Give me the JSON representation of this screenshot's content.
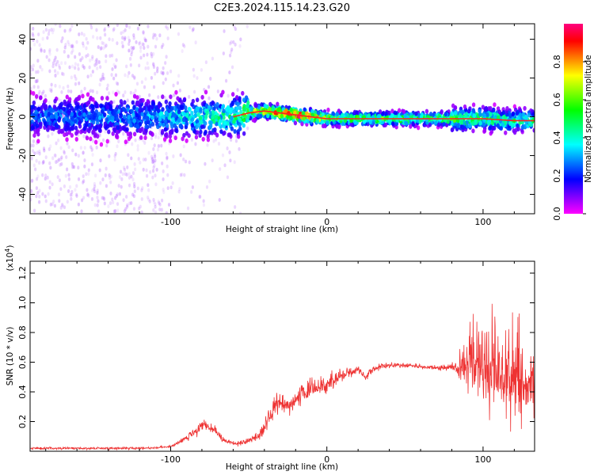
{
  "figure": {
    "title": "C2E3.2024.115.14.23.G20"
  },
  "chart_data": [
    {
      "type": "heatmap",
      "name": "spectrogram",
      "xlabel": "Height of straight line (km)",
      "ylabel": "Frequency (Hz)",
      "xlim": [
        -190,
        133
      ],
      "ylim": [
        -50,
        48
      ],
      "x_ticks": [
        -100,
        0,
        100
      ],
      "x_tick_labels": [
        "-100",
        "0",
        "100"
      ],
      "y_ticks": [
        -40,
        -20,
        0,
        20,
        40
      ],
      "y_tick_labels": [
        "-40",
        "-20",
        "0",
        "20",
        "40"
      ],
      "colorbar": {
        "label": "Normalized spectral amplitude",
        "range": [
          0,
          1
        ],
        "ticks": [
          0.0,
          0.2,
          0.4,
          0.6,
          0.8
        ],
        "tick_labels": [
          "0.0",
          "0.2",
          "0.4",
          "0.6",
          "0.8"
        ],
        "colormap": [
          "#ff00ff",
          "#7f00ff",
          "#0000ff",
          "#0080ff",
          "#00ffff",
          "#00ff80",
          "#00ff00",
          "#80ff00",
          "#ffff00",
          "#ff8000",
          "#ff0000",
          "#ff007f"
        ]
      },
      "ridge": {
        "x": [
          -190,
          -120,
          -100,
          -80,
          -60,
          -50,
          -40,
          -30,
          -20,
          -10,
          0,
          20,
          40,
          60,
          80,
          100,
          120,
          133
        ],
        "freq": [
          0,
          0,
          0,
          0,
          0,
          2,
          3,
          2,
          1,
          0,
          -1,
          -1,
          -1,
          -1,
          -1,
          -1,
          -2,
          -2
        ],
        "amplitude": [
          0.25,
          0.3,
          0.35,
          0.4,
          0.45,
          0.6,
          0.75,
          0.85,
          0.95,
          0.9,
          0.6,
          0.55,
          0.55,
          0.55,
          0.55,
          0.5,
          0.45,
          0.45
        ]
      }
    },
    {
      "type": "line",
      "name": "snr",
      "xlabel": "Height of straight line (km)",
      "ylabel": "SNR (10 * v/v)",
      "y_scale_note": "(x10^4)",
      "xlim": [
        -190,
        133
      ],
      "ylim": [
        0,
        1.28
      ],
      "x_ticks": [
        -100,
        0,
        100
      ],
      "x_tick_labels": [
        "-100",
        "0",
        "100"
      ],
      "y_ticks": [
        0.2,
        0.4,
        0.6,
        0.8,
        1.0,
        1.2
      ],
      "y_tick_labels": [
        "0.2",
        "0.4",
        "0.6",
        "0.8",
        "1.0",
        "1.2"
      ],
      "color": "#ee3333",
      "envelope": {
        "x": [
          -190,
          -120,
          -100,
          -92,
          -85,
          -78,
          -72,
          -66,
          -58,
          -50,
          -42,
          -36,
          -30,
          -26,
          -20,
          -10,
          0,
          10,
          20,
          25,
          30,
          40,
          50,
          60,
          70,
          82,
          86,
          92,
          100,
          110,
          120,
          133
        ],
        "mean": [
          0.02,
          0.02,
          0.03,
          0.08,
          0.12,
          0.18,
          0.14,
          0.07,
          0.05,
          0.07,
          0.12,
          0.25,
          0.35,
          0.3,
          0.35,
          0.42,
          0.45,
          0.52,
          0.55,
          0.5,
          0.56,
          0.58,
          0.58,
          0.57,
          0.56,
          0.57,
          0.55,
          0.58,
          0.52,
          0.52,
          0.45,
          0.45
        ],
        "spread": [
          0.01,
          0.01,
          0.01,
          0.02,
          0.04,
          0.06,
          0.04,
          0.02,
          0.02,
          0.02,
          0.05,
          0.08,
          0.1,
          0.08,
          0.08,
          0.08,
          0.07,
          0.06,
          0.03,
          0.04,
          0.03,
          0.02,
          0.02,
          0.02,
          0.02,
          0.03,
          0.1,
          0.25,
          0.3,
          0.32,
          0.35,
          0.3
        ]
      }
    }
  ]
}
